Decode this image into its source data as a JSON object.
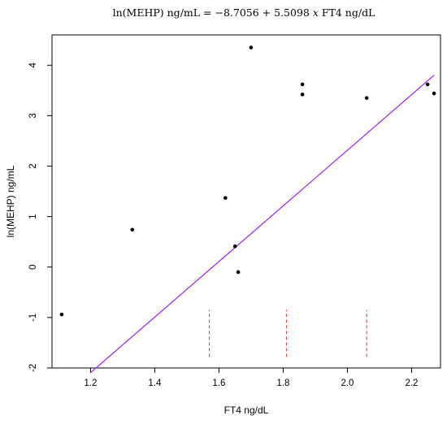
{
  "chart_data": {
    "type": "scatter",
    "title": "ln(MEHP) ng/mL =  −8.7056 + 5.5098 x FT4 ng/dL",
    "title_parts": {
      "lhs": "ln(MEHP) ng/mL =  ",
      "intercept": "−8.7056 + 5.5098 ",
      "variable": "x",
      "rhs": " FT4 ng/dL"
    },
    "xlabel": "FT4 ng/dL",
    "ylabel": "ln(MEHP) ng/mL",
    "xlim": [
      1.08,
      2.29
    ],
    "ylim": [
      -2.0,
      4.6
    ],
    "xticks": [
      1.2,
      1.4,
      1.6,
      1.8,
      2.0,
      2.2
    ],
    "xtick_labels": [
      "1.2",
      "1.4",
      "1.6",
      "1.8",
      "2.0",
      "2.2"
    ],
    "yticks": [
      -2,
      -1,
      0,
      1,
      2,
      3,
      4
    ],
    "ytick_labels": [
      "-2",
      "-1",
      "0",
      "1",
      "2",
      "3",
      "4"
    ],
    "points": [
      {
        "x": 1.11,
        "y": -0.94
      },
      {
        "x": 1.33,
        "y": 0.74
      },
      {
        "x": 1.62,
        "y": 1.37
      },
      {
        "x": 1.65,
        "y": 0.41
      },
      {
        "x": 1.66,
        "y": -0.1
      },
      {
        "x": 1.7,
        "y": 4.35
      },
      {
        "x": 1.86,
        "y": 3.62
      },
      {
        "x": 1.86,
        "y": 3.42
      },
      {
        "x": 2.06,
        "y": 3.35
      },
      {
        "x": 2.25,
        "y": 3.62
      },
      {
        "x": 2.27,
        "y": 3.44
      }
    ],
    "regression": {
      "intercept": -8.7056,
      "slope": 5.5098,
      "x_range": [
        1.2,
        2.27
      ],
      "color": "#a020f0"
    },
    "vertical_markers": {
      "x": [
        1.57,
        1.81,
        2.06
      ],
      "y_range": [
        -1.78,
        -0.85
      ],
      "color": "#e8312a",
      "style": "dashed"
    },
    "point_color": "#000000",
    "grid": false,
    "legend": "none"
  }
}
